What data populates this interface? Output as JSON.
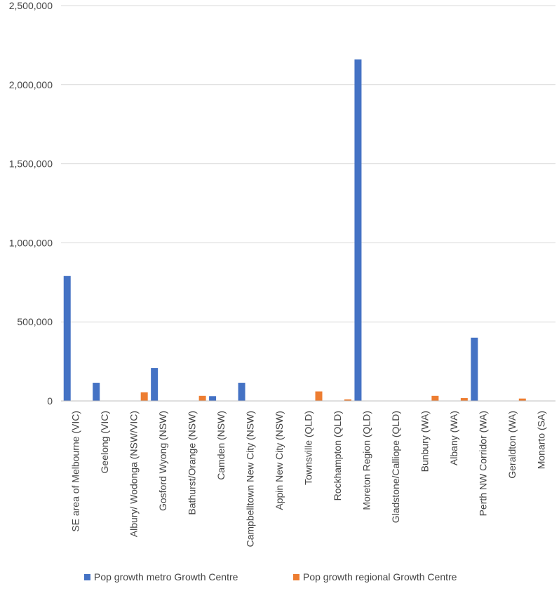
{
  "chart_data": {
    "type": "bar",
    "title": "",
    "xlabel": "",
    "ylabel": "",
    "ylim": [
      0,
      2500000
    ],
    "yticks": [
      0,
      500000,
      1000000,
      1500000,
      2000000,
      2500000
    ],
    "ytick_labels": [
      "0",
      "500,000",
      "1,000,000",
      "1,500,000",
      "2,000,000",
      "2,500,000"
    ],
    "grid": true,
    "legend_position": "bottom",
    "categories": [
      "SE area of Melbourne (VIC)",
      "Geelong (VIC)",
      "Albury/ Wodonga (NSW/VIC)",
      "Gosford Wyong (NSW)",
      "Bathurst/Orange (NSW)",
      "Camden  (NSW)",
      "Campbelltown New City (NSW)",
      "Appin New City (NSW)",
      "Townsville (QLD)",
      "Rockhampton (QLD)",
      "Moreton Region (QLD)",
      "Gladstone/Calliope (QLD)",
      "Bunbury (WA)",
      "Albany (WA)",
      "Perth NW Corridor  (WA)",
      "Geraldton (WA)",
      "Monarto (SA)"
    ],
    "series": [
      {
        "name": "Pop growth metro Growth Centre",
        "color": "#4472c4",
        "values": [
          790000,
          115000,
          0,
          208000,
          0,
          30000,
          115000,
          0,
          0,
          0,
          2160000,
          0,
          0,
          0,
          400000,
          0,
          0
        ]
      },
      {
        "name": "Pop growth regional Growth Centre",
        "color": "#ed7d31",
        "values": [
          0,
          0,
          55000,
          0,
          32000,
          0,
          0,
          0,
          60000,
          10000,
          0,
          0,
          32000,
          18000,
          0,
          15000,
          0
        ]
      }
    ]
  }
}
